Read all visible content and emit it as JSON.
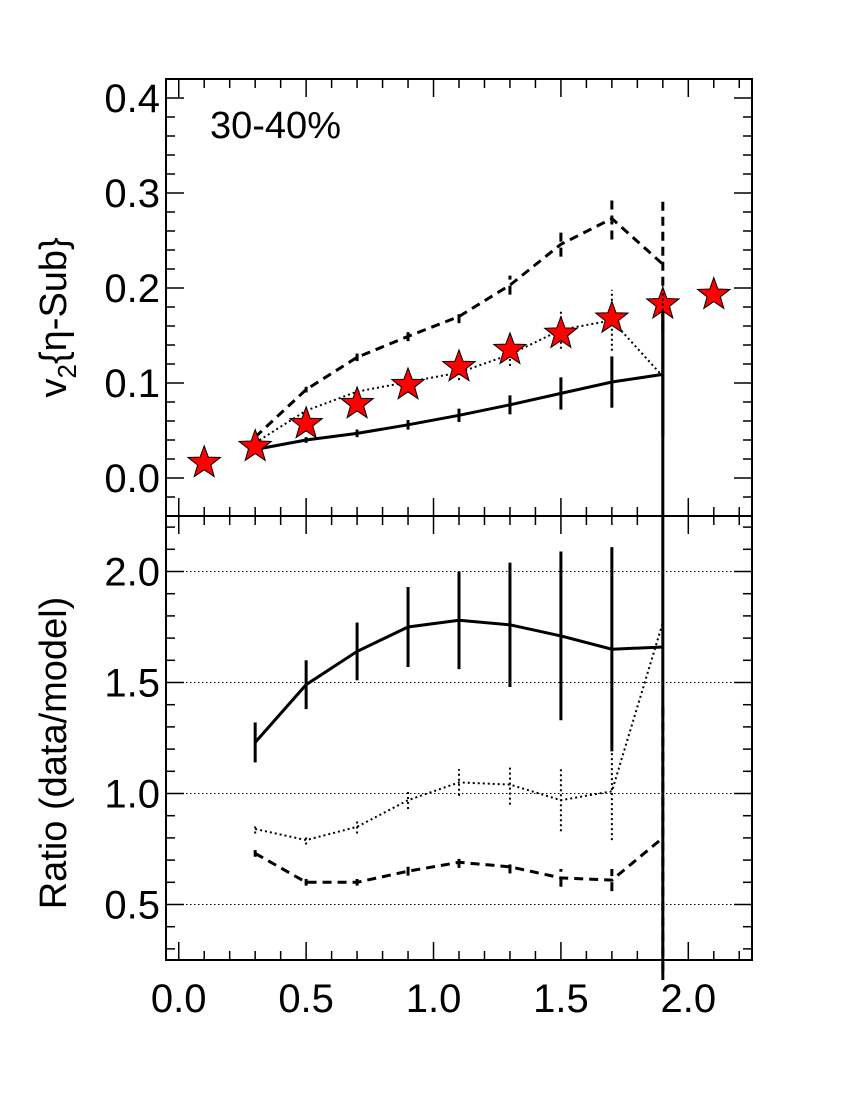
{
  "chart_data": [
    {
      "type": "line",
      "panel": "top",
      "label": "30-40%",
      "ylabel": "v{η-Sub}",
      "ylabel_parts": {
        "base": "v",
        "sub": "2",
        "rest": "{η-Sub}"
      },
      "xlim": [
        -0.05,
        2.25
      ],
      "ylim": [
        -0.04,
        0.42
      ],
      "yticks": [
        "0.0",
        "0.1",
        "0.2",
        "0.3",
        "0.4"
      ],
      "ytick_values": [
        0.0,
        0.1,
        0.2,
        0.3,
        0.4
      ],
      "series": [
        {
          "style": "solid",
          "x": [
            0.3,
            0.5,
            0.7,
            0.9,
            1.1,
            1.3,
            1.5,
            1.7,
            1.9
          ],
          "y": [
            0.03,
            0.04,
            0.047,
            0.056,
            0.066,
            0.077,
            0.089,
            0.101,
            0.109
          ],
          "err": [
            0.002,
            0.003,
            0.004,
            0.005,
            0.007,
            0.01,
            0.017,
            0.027,
            0.065
          ]
        },
        {
          "style": "dashed",
          "x": [
            0.3,
            0.5,
            0.7,
            0.9,
            1.1,
            1.3,
            1.5,
            1.7,
            1.9
          ],
          "y": [
            0.043,
            0.093,
            0.127,
            0.149,
            0.17,
            0.203,
            0.246,
            0.273,
            0.225
          ],
          "err": [
            0.002,
            0.003,
            0.004,
            0.005,
            0.007,
            0.01,
            0.013,
            0.022,
            0.07
          ]
        },
        {
          "style": "dotted",
          "x": [
            0.3,
            0.5,
            0.7,
            0.9,
            1.1,
            1.3,
            1.5,
            1.7,
            1.9
          ],
          "y": [
            0.037,
            0.071,
            0.091,
            0.101,
            0.111,
            0.13,
            0.156,
            0.166,
            0.107
          ],
          "err": [
            0.002,
            0.003,
            0.004,
            0.005,
            0.008,
            0.012,
            0.02,
            0.032,
            0.095
          ]
        },
        {
          "style": "stars",
          "color": "#ff0000",
          "x": [
            0.1,
            0.3,
            0.5,
            0.7,
            0.9,
            1.1,
            1.3,
            1.5,
            1.7,
            1.9,
            2.1
          ],
          "y": [
            0.016,
            0.033,
            0.057,
            0.078,
            0.098,
            0.117,
            0.135,
            0.152,
            0.168,
            0.183,
            0.193
          ]
        }
      ]
    },
    {
      "type": "line",
      "panel": "bottom",
      "ylabel": "Ratio (data/model)",
      "xlim": [
        -0.05,
        2.25
      ],
      "ylim": [
        0.25,
        2.25
      ],
      "yticks": [
        "0.5",
        "1.0",
        "1.5",
        "2.0"
      ],
      "ytick_values": [
        0.5,
        1.0,
        1.5,
        2.0
      ],
      "xticks": [
        "0.0",
        "0.5",
        "1.0",
        "1.5",
        "2.0"
      ],
      "xtick_values": [
        0.0,
        0.5,
        1.0,
        1.5,
        2.0
      ],
      "grid": "horizontal dotted",
      "series": [
        {
          "style": "solid",
          "x": [
            0.3,
            0.5,
            0.7,
            0.9,
            1.1,
            1.3,
            1.5,
            1.7,
            1.9
          ],
          "y": [
            1.23,
            1.49,
            1.64,
            1.75,
            1.78,
            1.76,
            1.71,
            1.65,
            1.66
          ],
          "err": [
            0.09,
            0.11,
            0.13,
            0.18,
            0.22,
            0.28,
            0.38,
            0.46,
            1.5
          ]
        },
        {
          "style": "dotted",
          "x": [
            0.3,
            0.5,
            0.7,
            0.9,
            1.1,
            1.3,
            1.5,
            1.7,
            1.9
          ],
          "y": [
            0.84,
            0.79,
            0.85,
            0.97,
            1.05,
            1.04,
            0.97,
            1.01,
            1.77
          ],
          "err": [
            0.02,
            0.02,
            0.03,
            0.04,
            0.06,
            0.09,
            0.14,
            0.22,
            1.5
          ]
        },
        {
          "style": "dashed",
          "x": [
            0.3,
            0.5,
            0.7,
            0.9,
            1.1,
            1.3,
            1.5,
            1.7,
            1.9
          ],
          "y": [
            0.73,
            0.6,
            0.6,
            0.65,
            0.69,
            0.67,
            0.62,
            0.61,
            0.8
          ],
          "err": [
            0.015,
            0.015,
            0.015,
            0.02,
            0.025,
            0.03,
            0.04,
            0.05,
            0.6
          ]
        }
      ]
    }
  ]
}
